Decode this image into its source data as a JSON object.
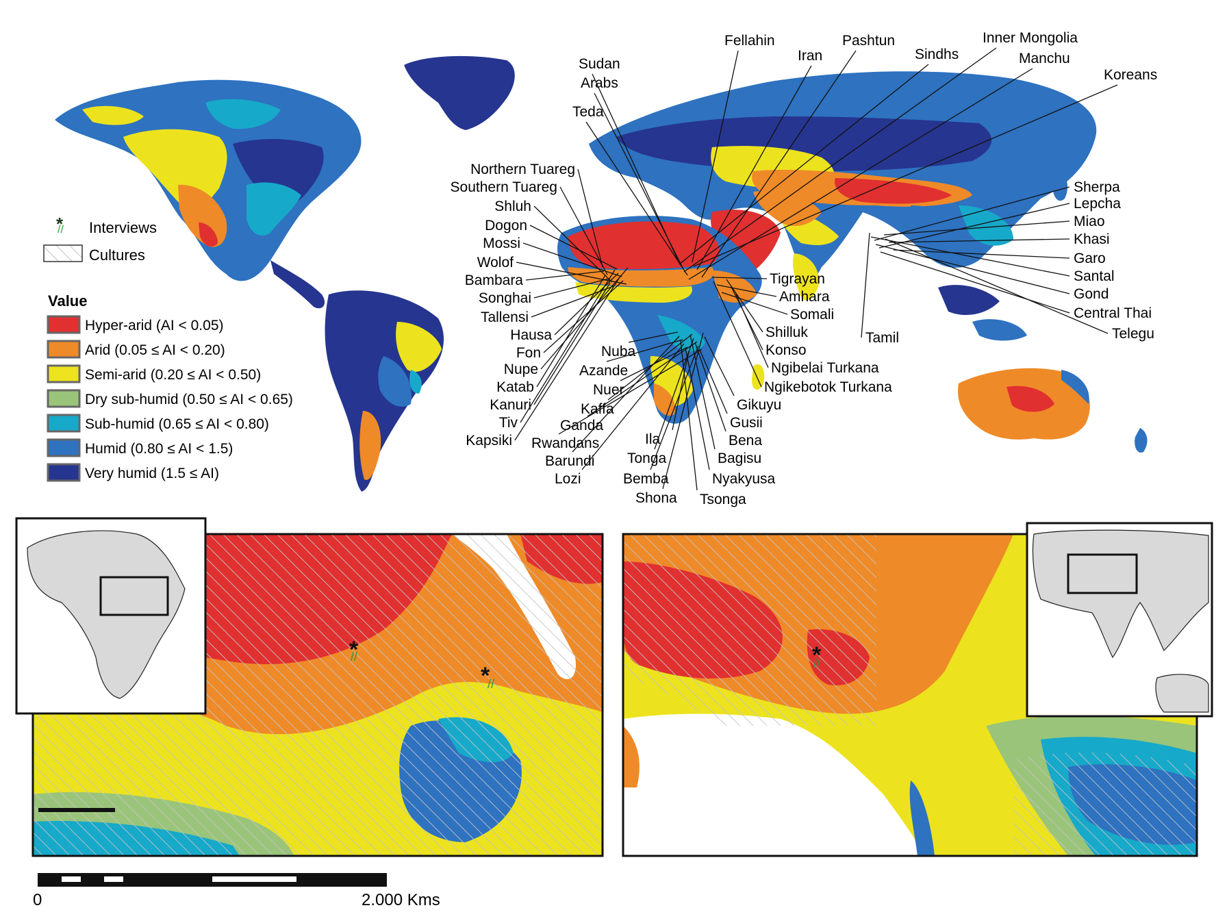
{
  "legend": {
    "interviews_label": "Interviews",
    "cultures_label": "Cultures",
    "value_title": "Value",
    "classes": [
      {
        "label": "Hyper-arid (AI < 0.05)",
        "color": "#e03030"
      },
      {
        "label": "Arid (0.05 ≤ AI < 0.20)",
        "color": "#ef8a28"
      },
      {
        "label": "Semi-arid (0.20 ≤ AI < 0.50)",
        "color": "#ece31e"
      },
      {
        "label": "Dry sub-humid (0.50 ≤ AI < 0.65)",
        "color": "#9ac47a"
      },
      {
        "label": "Sub-humid (0.65 ≤ AI < 0.80)",
        "color": "#17a9c9"
      },
      {
        "label": "Humid (0.80 ≤ AI < 1.5)",
        "color": "#2e72c0"
      },
      {
        "label": "Very humid (1.5 ≤ AI)",
        "color": "#26358f"
      }
    ]
  },
  "cultures": {
    "north": [
      "Sudan",
      "Arabs",
      "Teda",
      "Fellahin",
      "Iran",
      "Pashtun",
      "Sindhs",
      "Inner Mongolia",
      "Manchu",
      "Koreans"
    ],
    "africa_left": [
      "Northern Tuareg",
      "Southern Tuareg",
      "Shluh",
      "Dogon",
      "Mossi",
      "Wolof",
      "Bambara",
      "Songhai",
      "Tallensi",
      "Hausa",
      "Fon",
      "Nupe",
      "Katab",
      "Kanuri",
      "Tiv",
      "Kapsiki"
    ],
    "africa_center": [
      "Nuba",
      "Azande",
      "Nuer",
      "Kaffa",
      "Ganda",
      "Rwandans",
      "Barundi",
      "Lozi",
      "Ila",
      "Tonga",
      "Bemba",
      "Shona",
      "Tsonga",
      "Nyakyusa",
      "Bagisu",
      "Bena",
      "Gusii",
      "Gikuyu"
    ],
    "africa_east": [
      "Tigrayan",
      "Amhara",
      "Somali",
      "Shilluk",
      "Konso",
      "Ngibelai Turkana",
      "Ngikebotok Turkana"
    ],
    "asia": [
      "Tamil",
      "Sherpa",
      "Lepcha",
      "Miao",
      "Khasi",
      "Garo",
      "Santal",
      "Gond",
      "Central Thai",
      "Telegu"
    ]
  },
  "scalebar": {
    "start_label": "0",
    "end_label": "2.000 Kms"
  },
  "colors": {
    "ocean": "#ffffff",
    "inset_land": "#d9d9d9",
    "hatch": "#b8b8b8",
    "interview_star": "#1a3a1a",
    "interview_mark": "#2a9a3a"
  }
}
